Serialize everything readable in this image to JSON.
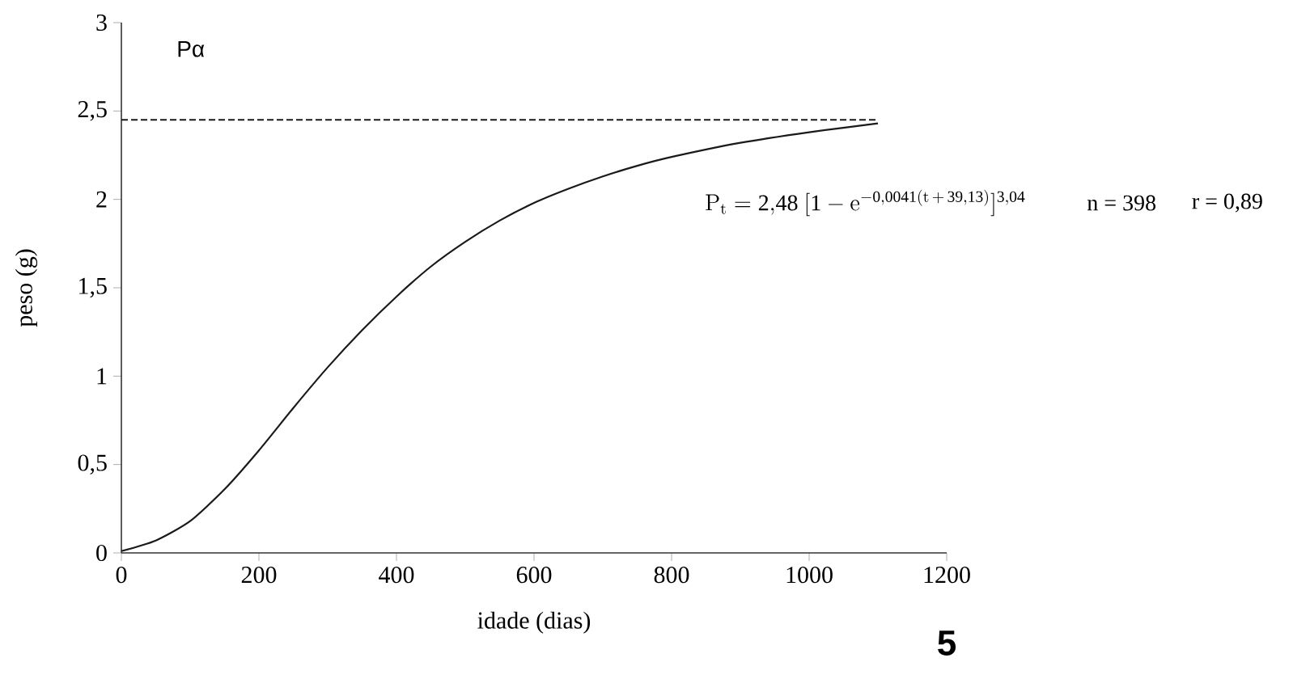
{
  "chart_data": {
    "type": "line",
    "xlabel": "idade (dias)",
    "ylabel": "peso (g)",
    "x": [
      0,
      50,
      100,
      150,
      200,
      250,
      300,
      350,
      400,
      450,
      500,
      550,
      600,
      650,
      700,
      750,
      800,
      900,
      1000,
      1100
    ],
    "series": [
      {
        "color": "#1a1a1a",
        "values": [
          0.01,
          0.07,
          0.18,
          0.36,
          0.58,
          0.82,
          1.05,
          1.26,
          1.45,
          1.62,
          1.76,
          1.88,
          1.98,
          2.06,
          2.13,
          2.19,
          2.24,
          2.32,
          2.38,
          2.43
        ]
      }
    ],
    "xlim": [
      0,
      1200
    ],
    "ylim": [
      0,
      3
    ],
    "xticks": [
      0,
      200,
      400,
      600,
      800,
      1000,
      1200
    ],
    "yticks": [
      0,
      {
        "value": 0.5,
        "label": "0,5"
      },
      1,
      {
        "value": 1.5,
        "label": "1,5"
      },
      2,
      {
        "value": 2.5,
        "label": "2,5"
      },
      3
    ],
    "ref_lines": [
      {
        "axis": "y",
        "value": 2.45,
        "line_style": "dashed",
        "color": "#1a1a1a"
      }
    ],
    "annotations": [
      "Pα",
      "\\mathrm{P_t} = 2{,}48\\ [1 - \\mathrm{e}^{-0{,}0041(\\mathrm{t}\\,+\\,39{,}13)}]^{3{,}04}",
      "n = 398",
      "r = 0,89",
      "5"
    ],
    "grid": false,
    "marker": "none",
    "line_style": "solid"
  }
}
